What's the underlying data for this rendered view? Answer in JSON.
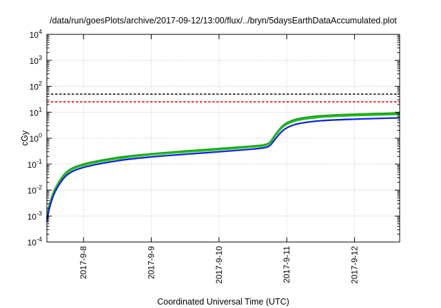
{
  "chart_data": {
    "type": "line",
    "title": "/data/run/goesPlots/archive/2017-09-12/13:00/flux/../bryn/5daysEarthDataAccumulated.plot",
    "xlabel": "Coordinated Universal Time (UTC)",
    "ylabel": "cGy",
    "yscale": "log",
    "ylim": [
      0.0001,
      10000
    ],
    "xlim": [
      "2017-09-07 11:00",
      "2017-09-12 16:00"
    ],
    "grid": true,
    "legend": "none",
    "x_ticks": [
      "2017-9-8",
      "2017-9-9",
      "2017-9-10",
      "2017-9-11",
      "2017-9-12"
    ],
    "y_ticks": [
      {
        "base": "10",
        "exp": "-4"
      },
      {
        "base": "10",
        "exp": "-3"
      },
      {
        "base": "10",
        "exp": "-2"
      },
      {
        "base": "10",
        "exp": "-1"
      },
      {
        "base": "10",
        "exp": "0"
      },
      {
        "base": "10",
        "exp": "1"
      },
      {
        "base": "10",
        "exp": "2"
      },
      {
        "base": "10",
        "exp": "3"
      },
      {
        "base": "10",
        "exp": "4"
      }
    ],
    "reference_lines": [
      {
        "y": 50,
        "color": "#000000",
        "style": "dashed"
      },
      {
        "y": 25,
        "color": "#e8000b",
        "style": "dashed"
      }
    ],
    "series": [
      {
        "color": "#1aa01a",
        "x": [
          "2017-09-07 11:00",
          "2017-09-07 12:00",
          "2017-09-07 14:00",
          "2017-09-07 18:00",
          "2017-09-08 00:00",
          "2017-09-08 12:00",
          "2017-09-09 00:00",
          "2017-09-09 12:00",
          "2017-09-10 00:00",
          "2017-09-10 12:00",
          "2017-09-10 16:00",
          "2017-09-10 18:00",
          "2017-09-10 20:00",
          "2017-09-10 22:00",
          "2017-09-11 00:00",
          "2017-09-11 04:00",
          "2017-09-11 12:00",
          "2017-09-12 00:00",
          "2017-09-12 12:00",
          "2017-09-12 16:00"
        ],
        "y": [
          0.0009,
          0.003,
          0.012,
          0.05,
          0.1,
          0.18,
          0.25,
          0.32,
          0.4,
          0.5,
          0.56,
          0.7,
          1.4,
          2.6,
          3.9,
          5.6,
          7.3,
          8.4,
          9.1,
          9.3
        ]
      },
      {
        "color": "#20c020",
        "x": [
          "2017-09-07 11:00",
          "2017-09-07 12:00",
          "2017-09-07 14:00",
          "2017-09-07 18:00",
          "2017-09-08 00:00",
          "2017-09-08 12:00",
          "2017-09-09 00:00",
          "2017-09-09 12:00",
          "2017-09-10 00:00",
          "2017-09-10 12:00",
          "2017-09-10 16:00",
          "2017-09-10 18:00",
          "2017-09-10 20:00",
          "2017-09-10 22:00",
          "2017-09-11 00:00",
          "2017-09-11 04:00",
          "2017-09-11 12:00",
          "2017-09-12 00:00",
          "2017-09-12 12:00",
          "2017-09-12 16:00"
        ],
        "y": [
          0.0008,
          0.0026,
          0.011,
          0.045,
          0.09,
          0.16,
          0.23,
          0.29,
          0.36,
          0.46,
          0.51,
          0.64,
          1.25,
          2.3,
          3.4,
          4.9,
          6.4,
          7.4,
          8.0,
          8.2
        ]
      },
      {
        "color": "#1020e0",
        "x": [
          "2017-09-07 11:00",
          "2017-09-07 12:00",
          "2017-09-07 14:00",
          "2017-09-07 18:00",
          "2017-09-08 00:00",
          "2017-09-08 12:00",
          "2017-09-09 00:00",
          "2017-09-09 12:00",
          "2017-09-10 00:00",
          "2017-09-10 12:00",
          "2017-09-10 16:00",
          "2017-09-10 18:00",
          "2017-09-10 20:00",
          "2017-09-10 22:00",
          "2017-09-11 00:00",
          "2017-09-11 04:00",
          "2017-09-11 12:00",
          "2017-09-12 00:00",
          "2017-09-12 12:00",
          "2017-09-12 16:00"
        ],
        "y": [
          0.0006,
          0.0022,
          0.009,
          0.037,
          0.075,
          0.135,
          0.19,
          0.24,
          0.3,
          0.38,
          0.43,
          0.52,
          0.95,
          1.7,
          2.5,
          3.6,
          4.7,
          5.4,
          5.9,
          6.1
        ]
      }
    ]
  }
}
